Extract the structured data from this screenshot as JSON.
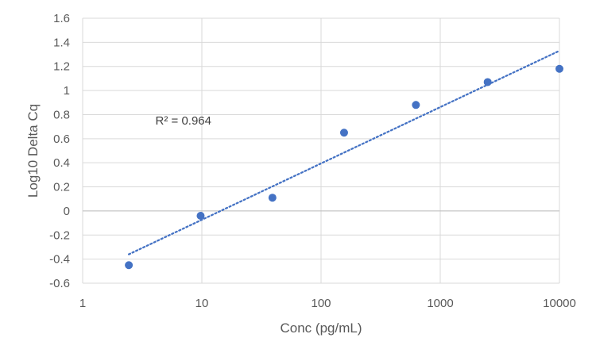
{
  "chart_data": {
    "type": "scatter",
    "xlabel": "Conc (pg/mL)",
    "ylabel": "Log10 Delta Cq",
    "x_scale": "log",
    "xlim": [
      1,
      10000
    ],
    "ylim": [
      -0.6,
      1.6
    ],
    "x_ticks": [
      1,
      10,
      100,
      1000,
      10000
    ],
    "y_ticks": [
      -0.6,
      -0.4,
      -0.2,
      0,
      0.2,
      0.4,
      0.6,
      0.8,
      1,
      1.2,
      1.4,
      1.6
    ],
    "x_tick_labels": [
      "1",
      "10",
      "100",
      "1000",
      "10000"
    ],
    "y_tick_labels": [
      "-0.6",
      "-0.4",
      "-0.2",
      "0",
      "0.2",
      "0.4",
      "0.6",
      "0.8",
      "1",
      "1.2",
      "1.4",
      "1.6"
    ],
    "grid": true,
    "series": [
      {
        "x": [
          2.44,
          9.77,
          39.1,
          156,
          625,
          2500,
          10000
        ],
        "y": [
          -0.45,
          -0.04,
          0.11,
          0.65,
          0.88,
          1.07,
          1.18
        ],
        "color": "#4472C4"
      }
    ],
    "trendline": {
      "type": "logarithmic",
      "style": "dotted",
      "color": "#4472C4",
      "x": [
        2.44,
        10000
      ],
      "y": [
        -0.36,
        1.33
      ]
    },
    "annotations": [
      {
        "text": "R² = 0.964",
        "x": 7,
        "y": 0.75
      }
    ]
  }
}
